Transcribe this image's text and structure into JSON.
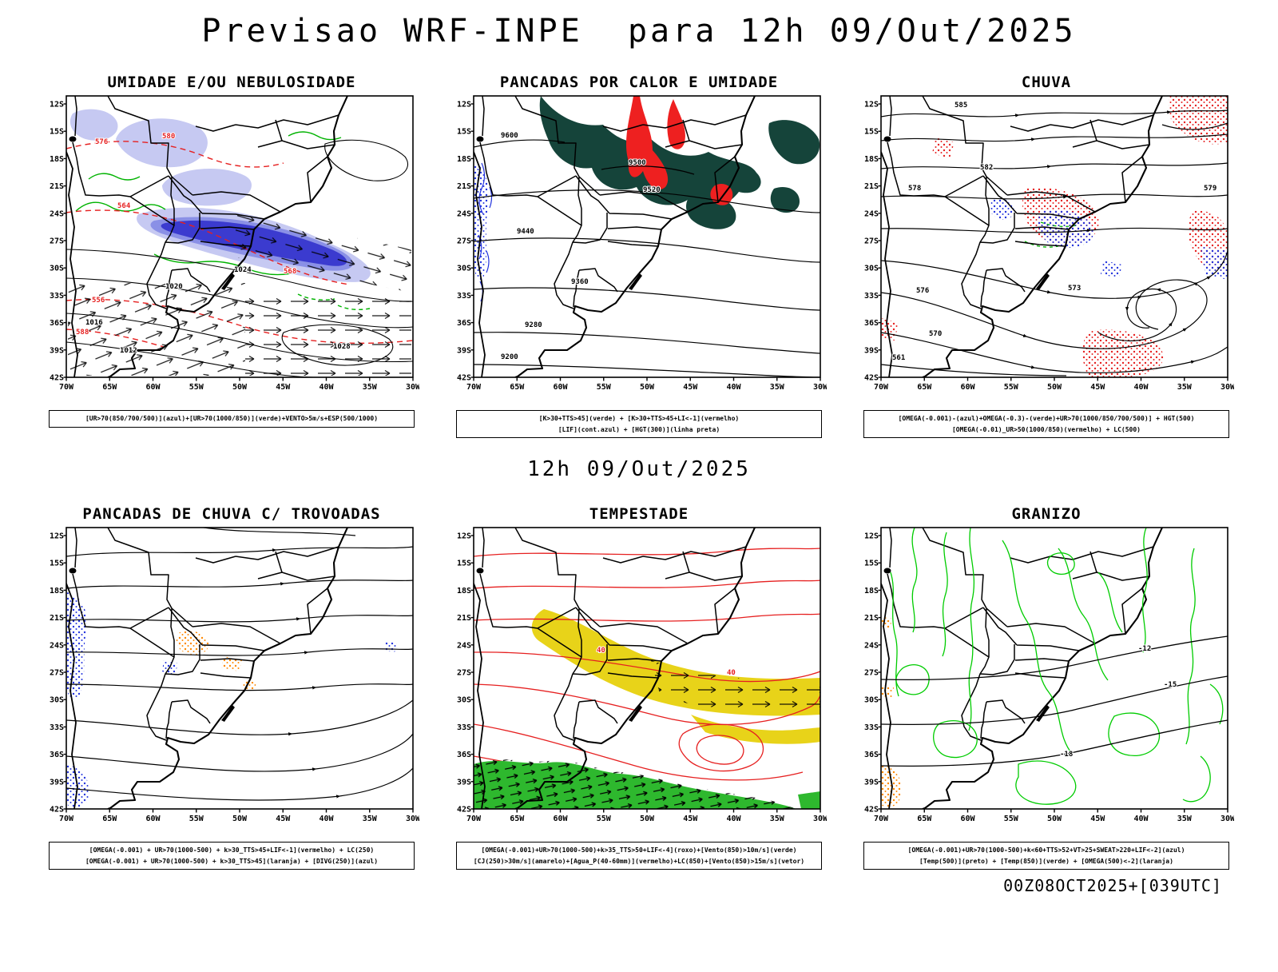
{
  "page": {
    "title": "Previsao WRF-INPE  para 12h 09/Out/2025",
    "subtitle": "12h 09/Out/2025",
    "footer": "00Z08OCT2025+[039UTC]"
  },
  "axes": {
    "lat": [
      "12S",
      "15S",
      "18S",
      "21S",
      "24S",
      "27S",
      "30S",
      "33S",
      "36S",
      "39S",
      "42S"
    ],
    "lon": [
      "70W",
      "65W",
      "60W",
      "55W",
      "50W",
      "45W",
      "40W",
      "35W",
      "30W"
    ]
  },
  "colors": {
    "moisture_blue_dark": "#3b3bcf",
    "moisture_blue_light": "#c6c9f2",
    "convection_teal": "#15443a",
    "warning_red": "#e62020",
    "jet_yellow": "#e8d319",
    "wind_green": "#2eb82e",
    "contour_green": "#00b300",
    "speckle_blue": "#2233dd",
    "speckle_orange": "#ff8800"
  },
  "panels": [
    {
      "title": "UMIDADE E/OU NEBULOSIDADE",
      "legend1": "[UR>70(850/700/500)](azul)+[UR>70(1000/850)](verde)+VENTO>5m/s+ESP(500/1000)",
      "legend2": "",
      "labels": [
        "1012",
        "1016",
        "1020",
        "1024",
        "1028",
        "576",
        "580",
        "564",
        "568",
        "556",
        "588"
      ]
    },
    {
      "title": "PANCADAS POR CALOR E UMIDADE",
      "legend1": "[K>30+TTS>45](verde) + [K>30+TTS>45+LI<-1](vermelho)",
      "legend2": "[LIF](cont.azul) + [HGT(300)](linha preta)",
      "labels": [
        "9600",
        "9500",
        "9520",
        "9440",
        "9360",
        "9280",
        "9200"
      ]
    },
    {
      "title": "CHUVA",
      "legend1": "[OMEGA(-0.001)-(azul)+OMEGA(-0.3)-(verde)+UR>70(1000/850/700/500)] + HGT(500)",
      "legend2": "[OMEGA(-0.01)_UR>50(1000/850)(vermelho) + LC(500)",
      "labels": [
        "585",
        "582",
        "578",
        "579",
        "576",
        "573",
        "570",
        "561"
      ]
    },
    {
      "title": "PANCADAS DE CHUVA C/ TROVOADAS",
      "legend1": "[OMEGA(-0.001) + UR>70(1000-500) + k>30_TTS>45+LIF<-1](vermelho) + LC(250)",
      "legend2": "[OMEGA(-0.001) + UR>70(1000-500) + k>30_TTS>45](laranja) + [DIVG(250)](azul)",
      "labels": []
    },
    {
      "title": "TEMPESTADE",
      "legend1": "[OMEGA(-0.001)+UR>70(1000-500)+k>35_TTS>50+LIF<-4](roxo)+[Vento(850)>10m/s](verde)",
      "legend2": "[CJ(250)>30m/s](amarelo)+[Agua_P(40-60mm)](vermelho)+LC(850)+[Vento(850)>15m/s](vetor)",
      "labels": [
        "40",
        "40"
      ]
    },
    {
      "title": "GRANIZO",
      "legend1": "[OMEGA(-0.001)+UR>70(1000-500)+k<60+TTS>52+VT>25+SWEAT>220+LIF<-2](azul)",
      "legend2": "[Temp(500)](preto) + [Temp(850)](verde) + [OMEGA(500)<-2](laranja)",
      "labels": [
        "-12",
        "-15",
        "-18"
      ]
    }
  ]
}
